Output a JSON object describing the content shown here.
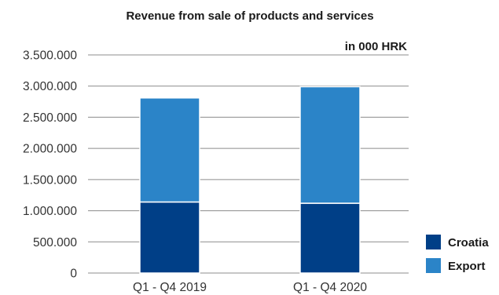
{
  "chart_data": {
    "type": "bar",
    "stacked": true,
    "title": "Revenue from sale of products and services",
    "unit_label": "in 000 HRK",
    "categories": [
      "Q1 - Q4 2019",
      "Q1 - Q4 2020"
    ],
    "series": [
      {
        "name": "Croatia",
        "values": [
          1140000,
          1120000
        ],
        "color": "#003f87"
      },
      {
        "name": "Export",
        "values": [
          1670000,
          1870000
        ],
        "color": "#2b84c8"
      }
    ],
    "ylim": [
      0,
      3500000
    ],
    "yticks": [
      "0",
      "500.000",
      "1.000.000",
      "1.500.000",
      "2.000.000",
      "2.500.000",
      "3.000.000",
      "3.500.000"
    ],
    "grid": true,
    "legend_position": "bottom-right"
  }
}
